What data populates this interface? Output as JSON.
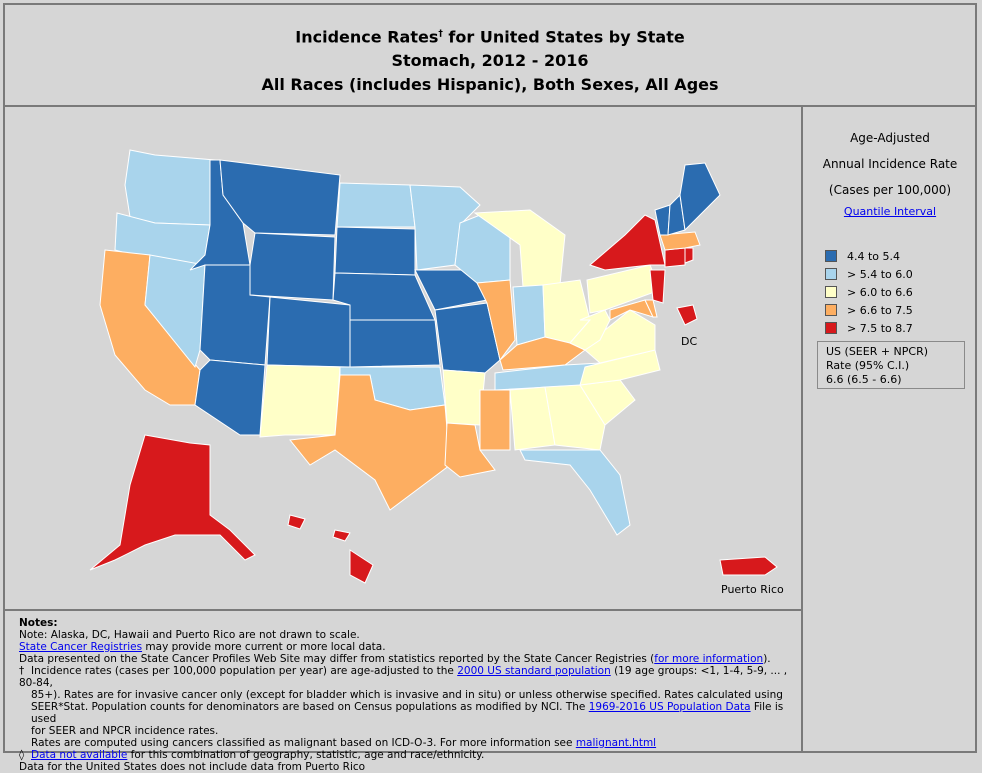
{
  "title": {
    "line1": "Incidence Rates",
    "dagger": "†",
    "line1b": " for United States by State",
    "line2": "Stomach, 2012 - 2016",
    "line3": "All Races (includes Hispanic), Both Sexes, All Ages"
  },
  "legend": {
    "title1": "Age-Adjusted",
    "title2": "Annual Incidence Rate",
    "title3": "(Cases per 100,000)",
    "interval_link": "Quantile Interval",
    "items": [
      {
        "label": "4.4  to  5.4",
        "color": "#2b6cb0"
      },
      {
        "label": "> 5.4  to  6.0",
        "color": "#a9d4ec"
      },
      {
        "label": "> 6.0  to  6.6",
        "color": "#ffffc8"
      },
      {
        "label": "> 6.6  to  7.5",
        "color": "#fdae61"
      },
      {
        "label": "> 7.5  to  8.7",
        "color": "#d7191c"
      }
    ],
    "us_title": "US (SEER + NPCR)",
    "us_rate_label": "Rate (95% C.I.)",
    "us_rate_value": "6.6     (6.5 - 6.6)"
  },
  "map": {
    "labels": {
      "dc": "DC",
      "puerto_rico": "Puerto Rico"
    },
    "state_classes": {
      "WA": 1,
      "OR": 1,
      "CA": 3,
      "NV": 1,
      "ID": 0,
      "MT": 0,
      "WY": 0,
      "UT": 0,
      "AZ": 0,
      "CO": 0,
      "NM": 2,
      "ND": 1,
      "SD": 0,
      "NE": 0,
      "KS": 0,
      "OK": 1,
      "TX": 3,
      "MN": 1,
      "IA": 0,
      "MO": 0,
      "AR": 2,
      "LA": 3,
      "WI": 1,
      "IL": 3,
      "MI": 2,
      "IN": 1,
      "OH": 2,
      "KY": 3,
      "TN": 1,
      "MS": 3,
      "AL": 2,
      "GA": 2,
      "FL": 1,
      "SC": 2,
      "NC": 2,
      "VA": 2,
      "WV": 2,
      "PA": 2,
      "NY": 4,
      "NJ": 4,
      "DE": 3,
      "MD": 3,
      "CT": 4,
      "RI": 4,
      "MA": 3,
      "VT": 0,
      "NH": 0,
      "ME": 0,
      "AK": 4,
      "HI": 4,
      "DC": 4,
      "PR": 4
    }
  },
  "notes": {
    "heading": "Notes:",
    "line1": "Note: Alaska, DC, Hawaii and Puerto Rico are not drawn to scale.",
    "registries_link": "State Cancer Registries",
    "line2_rest": " may provide more current or more local data.",
    "line3_pre": "Data presented on the State Cancer Profiles Web Site may differ from statistics reported by the State Cancer Registries (",
    "line3_link": "for more information",
    "line3_post": ").",
    "dagger": "†",
    "line4_pre": "Incidence rates (cases per 100,000 population per year) are age-adjusted to the ",
    "line4_link": "2000 US standard population",
    "line4_post": " (19 age groups: <1, 1-4, 5-9, ... , 80-84,",
    "line5": "85+). Rates are for invasive cancer only (except for bladder which is invasive and in situ) or unless otherwise specified. Rates calculated using",
    "line6_pre": "SEER*Stat. Population counts for denominators are based on Census populations as modified  by NCI. The ",
    "line6_link": "1969-2016 US Population Data",
    "line6_post": " File is used",
    "line7": "for SEER and NPCR incidence rates.",
    "line8_pre": "Rates are computed using cancers classified as malignant based on ICD-O-3. For more information see ",
    "line8_link": "malignant.html",
    "diamond": "◊",
    "line9_link": "Data not available",
    "line9_post": " for this combination of geography, statistic, age and race/ethnicity.",
    "line10": "Data for the United States does not include data from Puerto Rico"
  }
}
